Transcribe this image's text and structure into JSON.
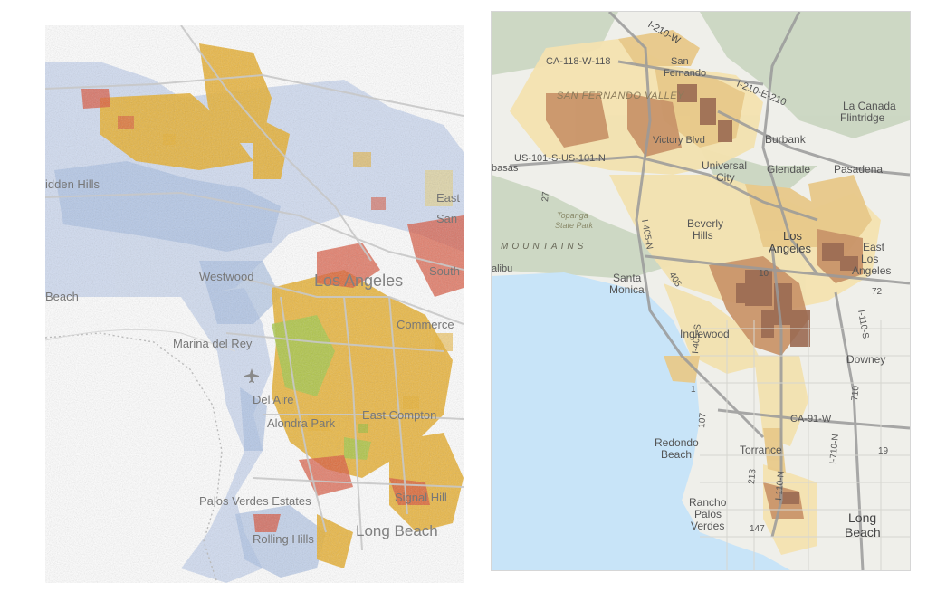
{
  "left_map": {
    "labels": {
      "hidden_hills": "idden Hills",
      "beach": "Beach",
      "westwood": "Westwood",
      "los_angeles": "Los Angeles",
      "south": "South",
      "commerce": "Commerce",
      "marina_del_rey": "Marina del Rey",
      "del_aire": "Del Aire",
      "alondra_park": "Alondra Park",
      "east_compton": "East Compton",
      "palos_verdes_estates": "Palos Verdes Estates",
      "signal_hill": "Signal Hill",
      "rolling_hills": "Rolling Hills",
      "long_beach": "Long Beach",
      "east": "East",
      "san": "San"
    },
    "colors": {
      "white_pop": "#a9bfe2",
      "hispanic": "#e8b030",
      "black": "#8fbf3a",
      "asian": "#d9533a",
      "road": "#c8c8c8"
    }
  },
  "right_map": {
    "labels": {
      "i210": "I-210-W",
      "san_fernando": "San\nFernando",
      "ca118": "CA-118-W-118",
      "sfv": "SAN FERNANDO VALLEY",
      "i210e": "I-210-E-210",
      "la_canada": "La Canada\nFlintridge",
      "us101": "US-101-S-US-101-N",
      "victory": "Victory Blvd",
      "burbank": "Burbank",
      "basas": "basas",
      "universal": "Universal\nCity",
      "glendale": "Glendale",
      "pasadena": "Pasadena",
      "topanga": "Topanga\nState Park",
      "beverly": "Beverly\nHills",
      "los_angeles": "Los\nAngeles",
      "east_la": "East\nLos\nAngeles",
      "mountains": "MOUNTAINS",
      "alibu": "alibu",
      "santa_monica": "Santa\nMonica",
      "i405n": "I-405-N",
      "num405": "405",
      "num10": "10",
      "num72": "72",
      "i110s": "I-110-S",
      "inglewood": "Inglewood",
      "downey": "Downey",
      "i405s": "I-405-S",
      "num710": "710",
      "ca91": "CA-91-W",
      "redondo": "Redondo\nBeach",
      "torrance": "Torrance",
      "num107": "107",
      "i710n": "I-710-N",
      "num19": "19",
      "num213": "213",
      "i110n": "I-110-N",
      "rancho": "Rancho\nPalos\nVerdes",
      "num147": "147",
      "long_beach": "Long\nBeach",
      "num27": "27",
      "num1": "1"
    },
    "colors": {
      "ocean": "#c8e4f8",
      "land": "#efefea",
      "hills": "#c7d3bd",
      "tan_light": "#f3e2b0",
      "tan_mid": "#e8c98a",
      "tan_dark": "#c9956a",
      "brown": "#9b6b53",
      "road": "#9a9a9a"
    }
  }
}
